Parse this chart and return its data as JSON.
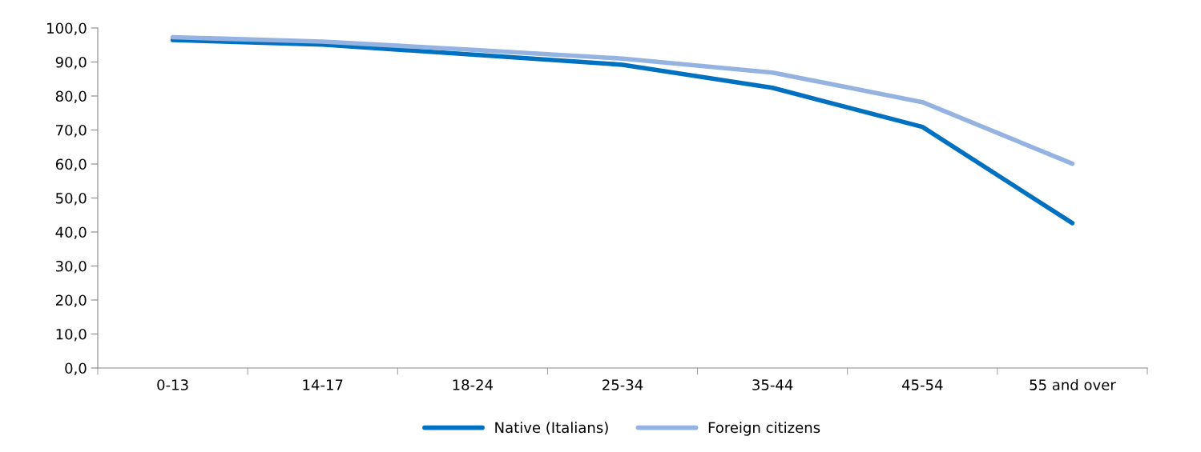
{
  "chart_data": {
    "type": "line",
    "categories": [
      "0-13",
      "14-17",
      "18-24",
      "25-34",
      "35-44",
      "45-54",
      "55 and over"
    ],
    "series": [
      {
        "name": "Native (Italians)",
        "color": "#0070c0",
        "values": [
          96.5,
          95.1,
          92.2,
          89.2,
          82.4,
          70.9,
          42.6
        ]
      },
      {
        "name": "Foreign citizens",
        "color": "#95b3e0",
        "values": [
          97.3,
          96.0,
          93.6,
          91.0,
          86.9,
          78.2,
          60.1
        ]
      }
    ],
    "ylim": [
      0,
      100
    ],
    "yticks": [
      {
        "value": 0,
        "label": "0,0"
      },
      {
        "value": 10,
        "label": "10,0"
      },
      {
        "value": 20,
        "label": "20,0"
      },
      {
        "value": 30,
        "label": "30,0"
      },
      {
        "value": 40,
        "label": "40,0"
      },
      {
        "value": 50,
        "label": "50,0"
      },
      {
        "value": 60,
        "label": "60,0"
      },
      {
        "value": 70,
        "label": "70,0"
      },
      {
        "value": 80,
        "label": "80,0"
      },
      {
        "value": 90,
        "label": "90,0"
      },
      {
        "value": 100,
        "label": "100,0"
      }
    ],
    "grid": false,
    "legend": "bottom",
    "marker": "none",
    "line_style": "solid"
  }
}
